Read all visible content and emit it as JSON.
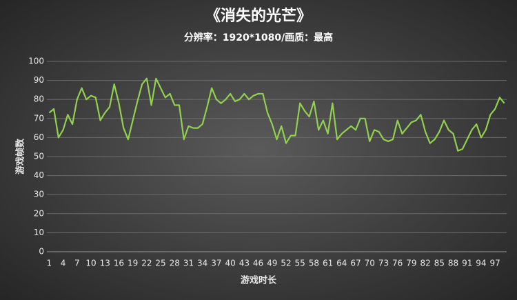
{
  "chart_data": {
    "type": "line",
    "title": "《消失的光芒》",
    "subtitle": "分辨率：1920*1080/画质：最高",
    "x_label": "游戏时长",
    "y_label": "游戏帧数",
    "x": [
      1,
      2,
      3,
      4,
      5,
      6,
      7,
      8,
      9,
      10,
      11,
      12,
      13,
      14,
      15,
      16,
      17,
      18,
      19,
      20,
      21,
      22,
      23,
      24,
      25,
      26,
      27,
      28,
      29,
      30,
      31,
      32,
      33,
      34,
      35,
      36,
      37,
      38,
      39,
      40,
      41,
      42,
      43,
      44,
      45,
      46,
      47,
      48,
      49,
      50,
      51,
      52,
      53,
      54,
      55,
      56,
      57,
      58,
      59,
      60,
      61,
      62,
      63,
      64,
      65,
      66,
      67,
      68,
      69,
      70,
      71,
      72,
      73,
      74,
      75,
      76,
      77,
      78,
      79,
      80,
      81,
      82,
      83,
      84,
      85,
      86,
      87,
      88,
      89,
      90,
      91,
      92,
      93,
      94,
      95,
      96,
      97,
      98,
      99
    ],
    "series": [
      {
        "name": "游戏帧数",
        "color": "#92d050",
        "values": [
          73,
          75,
          60,
          64,
          72,
          67,
          80,
          86,
          80,
          82,
          81,
          69,
          73,
          76,
          88,
          78,
          65,
          59,
          69,
          79,
          88,
          91,
          77,
          91,
          86,
          81,
          83,
          77,
          77,
          59,
          66,
          65,
          65,
          67,
          76,
          86,
          80,
          78,
          80,
          83,
          79,
          80,
          83,
          80,
          82,
          83,
          83,
          73,
          67,
          59,
          66,
          57,
          61,
          61,
          78,
          74,
          71,
          79,
          64,
          69,
          62,
          78,
          59,
          62,
          64,
          66,
          64,
          70,
          70,
          58,
          64,
          63,
          59,
          58,
          59,
          69,
          62,
          65,
          68,
          69,
          72,
          63,
          57,
          59,
          63,
          69,
          64,
          62,
          53,
          54,
          59,
          64,
          67,
          60,
          64,
          72,
          75,
          81,
          78
        ]
      }
    ],
    "xlim": [
      0.5,
      99.5
    ],
    "xticks": [
      1,
      4,
      7,
      10,
      13,
      16,
      19,
      22,
      25,
      28,
      31,
      34,
      37,
      40,
      43,
      46,
      49,
      52,
      55,
      58,
      61,
      64,
      67,
      70,
      73,
      76,
      79,
      82,
      85,
      88,
      91,
      94,
      97
    ],
    "ylim": [
      0,
      100
    ],
    "yticks": [
      0,
      10,
      20,
      30,
      40,
      50,
      60,
      70,
      80,
      90,
      100
    ],
    "grid": true
  }
}
